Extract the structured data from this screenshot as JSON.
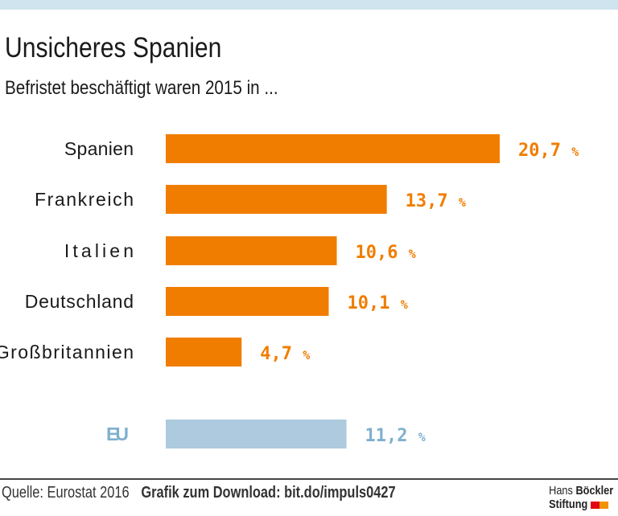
{
  "title": "Unsicheres Spanien",
  "subtitle": "Befristet beschäftigt waren 2015 in ...",
  "footer": {
    "source": "Quelle: Eurostat 2016",
    "download": "Grafik zum Download: bit.do/impuls0427",
    "logo_line1_light": "Hans",
    "logo_line1_bold": "Böckler",
    "logo_line2": "Stiftung"
  },
  "colors": {
    "bar": "#f07d00",
    "eu_bar": "#adcade",
    "eu_label": "#7fb0cf",
    "band": "#cfe4ee",
    "logo_red": "#e30613",
    "logo_orange": "#f39200"
  },
  "chart_data": {
    "type": "bar",
    "orientation": "horizontal",
    "categories": [
      "Spanien",
      "Frankreich",
      "Italien",
      "Deutschland",
      "Großbritannien",
      "EU"
    ],
    "values": [
      20.7,
      13.7,
      10.6,
      10.1,
      4.7,
      11.2
    ],
    "labels": [
      "20,7",
      "13,7",
      "10,6",
      "10,1",
      "4,7",
      "11,2"
    ],
    "unit": "%",
    "highlight": "EU"
  }
}
